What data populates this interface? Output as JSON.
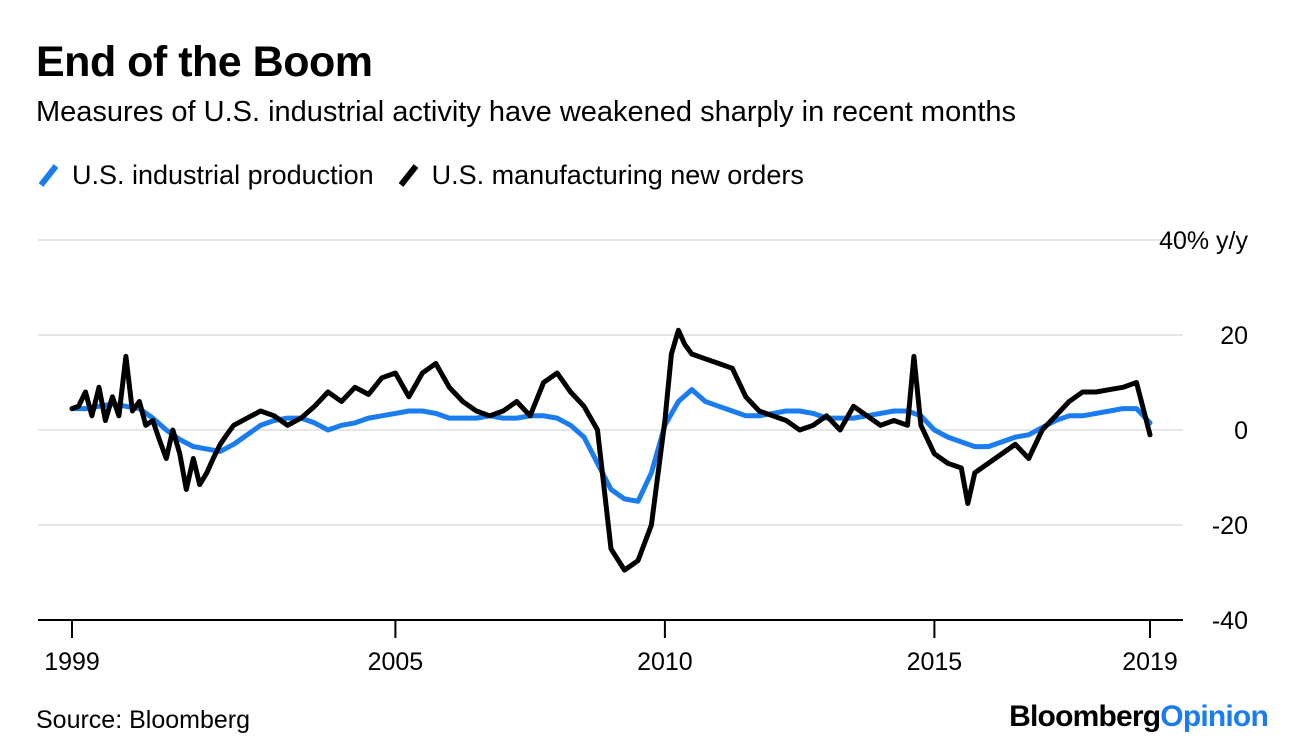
{
  "chart_data": {
    "type": "line",
    "title": "End of the Boom",
    "subtitle": "Measures of U.S. industrial activity have weakened sharply in recent months",
    "ylabel_unit": "40% y/y",
    "ylim": [
      -40,
      40
    ],
    "yticks": [
      40,
      20,
      0,
      -20,
      -40
    ],
    "ytick_labels": [
      "40% y/y",
      "20",
      "0",
      "-20",
      "-40"
    ],
    "xlim": [
      1999,
      2019
    ],
    "xticks": [
      1999,
      2005,
      2010,
      2015,
      2019
    ],
    "xtick_labels": [
      "1999",
      "2005",
      "2010",
      "2015",
      "2019"
    ],
    "source": "Source: Bloomberg",
    "brand": {
      "part1": "Bloomberg",
      "part2": "Opinion"
    },
    "colors": {
      "production": "#1a7cf0",
      "orders": "#000000",
      "grid": "#e6e6e6",
      "axis": "#000000",
      "brand_accent": "#1a7cf0"
    },
    "series": [
      {
        "name": "U.S. industrial production",
        "color": "#1a7cf0",
        "x": [
          1999.0,
          1999.25,
          1999.5,
          1999.75,
          2000.0,
          2000.25,
          2000.5,
          2000.75,
          2001.0,
          2001.25,
          2001.5,
          2001.75,
          2002.0,
          2002.25,
          2002.5,
          2002.75,
          2003.0,
          2003.25,
          2003.5,
          2003.75,
          2004.0,
          2004.25,
          2004.5,
          2004.75,
          2005.0,
          2005.25,
          2005.5,
          2005.75,
          2006.0,
          2006.25,
          2006.5,
          2006.75,
          2007.0,
          2007.25,
          2007.5,
          2007.75,
          2008.0,
          2008.25,
          2008.5,
          2008.75,
          2009.0,
          2009.25,
          2009.5,
          2009.75,
          2010.0,
          2010.25,
          2010.5,
          2010.75,
          2011.0,
          2011.25,
          2011.5,
          2011.75,
          2012.0,
          2012.25,
          2012.5,
          2012.75,
          2013.0,
          2013.25,
          2013.5,
          2013.75,
          2014.0,
          2014.25,
          2014.5,
          2014.75,
          2015.0,
          2015.25,
          2015.5,
          2015.75,
          2016.0,
          2016.25,
          2016.5,
          2016.75,
          2017.0,
          2017.25,
          2017.5,
          2017.75,
          2018.0,
          2018.25,
          2018.5,
          2018.75,
          2019.0
        ],
        "values": [
          4.5,
          4.5,
          5,
          5.5,
          5,
          4.5,
          2.5,
          0,
          -2,
          -3.5,
          -4,
          -4.5,
          -3,
          -1,
          1,
          2,
          2.5,
          2.5,
          1.5,
          0,
          1,
          1.5,
          2.5,
          3,
          3.5,
          4,
          4,
          3.5,
          2.5,
          2.5,
          2.5,
          3,
          2.5,
          2.5,
          3,
          3,
          2.5,
          1,
          -1.5,
          -7,
          -12.5,
          -14.5,
          -15,
          -9,
          1,
          6,
          8.5,
          6,
          5,
          4,
          3,
          3,
          3.5,
          4,
          4,
          3.5,
          2.5,
          2.5,
          2.5,
          3,
          3.5,
          4,
          4,
          3,
          0,
          -1.5,
          -2.5,
          -3.5,
          -3.5,
          -2.5,
          -1.5,
          -1,
          0.5,
          2,
          3,
          3,
          3.5,
          4,
          4.5,
          4.5,
          1.5
        ]
      },
      {
        "name": "U.S. manufacturing new orders",
        "color": "#000000",
        "x": [
          1999.0,
          1999.12,
          1999.25,
          1999.37,
          1999.5,
          1999.62,
          1999.75,
          1999.87,
          2000.0,
          2000.12,
          2000.25,
          2000.37,
          2000.5,
          2000.62,
          2000.75,
          2000.87,
          2001.0,
          2001.12,
          2001.25,
          2001.37,
          2001.5,
          2001.62,
          2001.75,
          2001.87,
          2002.0,
          2002.25,
          2002.5,
          2002.75,
          2003.0,
          2003.25,
          2003.5,
          2003.75,
          2004.0,
          2004.25,
          2004.5,
          2004.75,
          2005.0,
          2005.25,
          2005.5,
          2005.75,
          2006.0,
          2006.25,
          2006.5,
          2006.75,
          2007.0,
          2007.25,
          2007.5,
          2007.75,
          2008.0,
          2008.25,
          2008.5,
          2008.75,
          2009.0,
          2009.25,
          2009.5,
          2009.75,
          2010.0,
          2010.12,
          2010.25,
          2010.37,
          2010.5,
          2010.75,
          2011.0,
          2011.25,
          2011.5,
          2011.75,
          2012.0,
          2012.25,
          2012.5,
          2012.75,
          2013.0,
          2013.25,
          2013.5,
          2013.75,
          2014.0,
          2014.25,
          2014.5,
          2014.62,
          2014.75,
          2015.0,
          2015.25,
          2015.5,
          2015.62,
          2015.75,
          2016.0,
          2016.25,
          2016.5,
          2016.75,
          2017.0,
          2017.25,
          2017.5,
          2017.75,
          2018.0,
          2018.25,
          2018.5,
          2018.75,
          2019.0
        ],
        "values": [
          4.5,
          5,
          8,
          3,
          9,
          2,
          7,
          3,
          15.5,
          4,
          6,
          1,
          2,
          -2,
          -6,
          0,
          -5,
          -12.5,
          -6,
          -11.5,
          -9,
          -6,
          -3,
          -1,
          1,
          2.5,
          4,
          3,
          1,
          2.5,
          5,
          8,
          6,
          9,
          7.5,
          11,
          12,
          7,
          12,
          14,
          9,
          6,
          4,
          3,
          4,
          6,
          3,
          10,
          12,
          8,
          5,
          0,
          -25,
          -29.5,
          -27.5,
          -20,
          2,
          16,
          21,
          18,
          16,
          15,
          14,
          13,
          7,
          4,
          3,
          2,
          0,
          1,
          3,
          0,
          5,
          3,
          1,
          2,
          1,
          15.5,
          1,
          -5,
          -7,
          -8,
          -15.5,
          -9,
          -7,
          -5,
          -3,
          -6,
          0,
          3,
          6,
          8,
          8,
          8.5,
          9,
          10,
          -1
        ]
      }
    ]
  }
}
